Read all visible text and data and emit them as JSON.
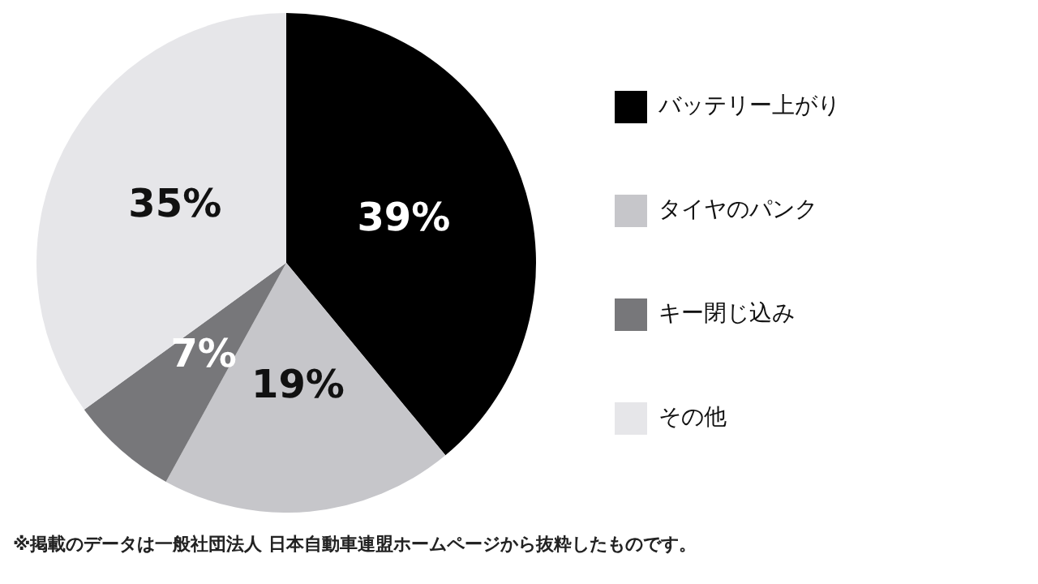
{
  "chart_data": {
    "type": "pie",
    "categories": [
      "バッテリー上がり",
      "タイヤのパンク",
      "キー閉じ込み",
      "その他"
    ],
    "values": [
      39,
      19,
      7,
      35
    ],
    "colors": [
      "#000000",
      "#c6c6ca",
      "#77777a",
      "#e6e6e9"
    ],
    "value_labels": [
      "39%",
      "19%",
      "7%",
      "35%"
    ],
    "legend": "right",
    "annotations": [
      "※掲載のデータは一般社団法人 日本自動車連盟ホームページから抜粋したものです。"
    ]
  }
}
